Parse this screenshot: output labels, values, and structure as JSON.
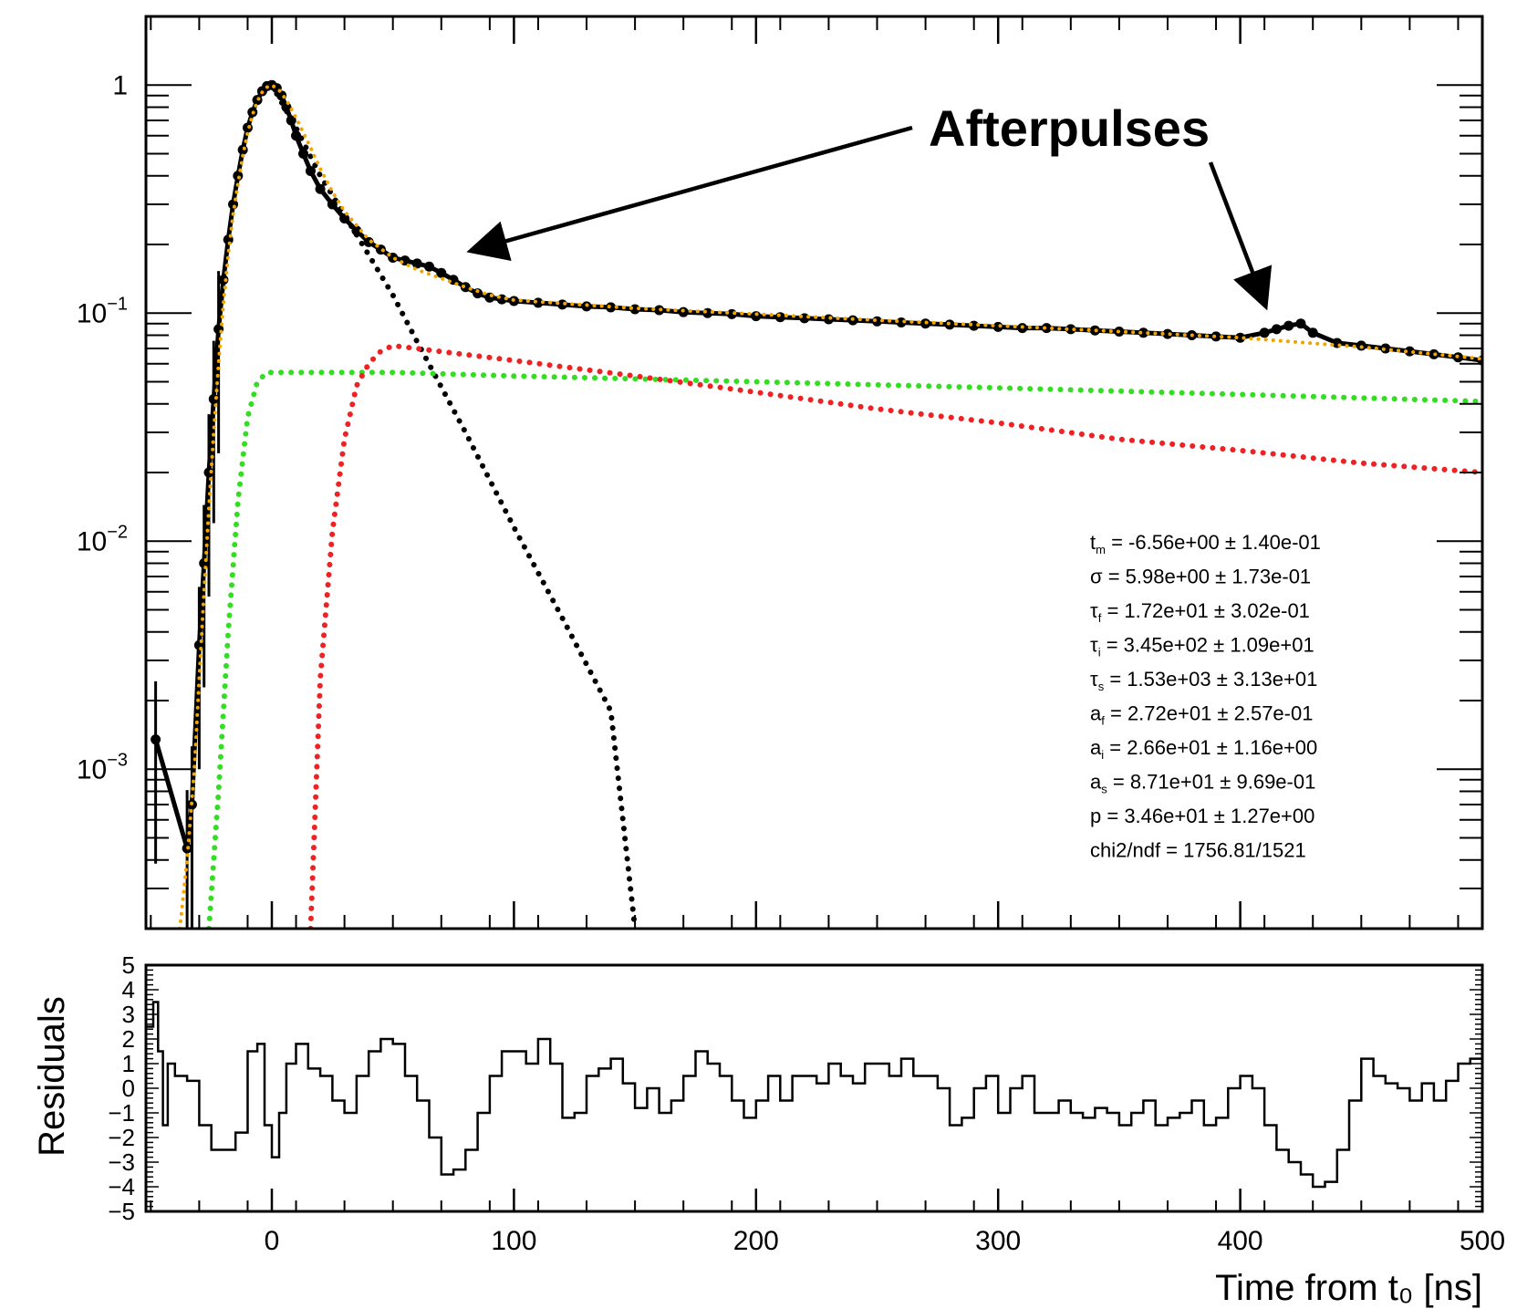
{
  "chart_data": [
    {
      "type": "scatter",
      "xlabel": "",
      "ylabel": "",
      "xlim": [
        -52,
        500
      ],
      "ylim": [
        0.0002,
        2
      ],
      "yscale": "log",
      "y_tick_labels": [
        {
          "value": 1,
          "base": "1",
          "exp": ""
        },
        {
          "value": 0.1,
          "base": "10",
          "exp": "−1"
        },
        {
          "value": 0.01,
          "base": "10",
          "exp": "−2"
        },
        {
          "value": 0.001,
          "base": "10",
          "exp": "−3"
        }
      ],
      "annotation": {
        "text": "Afterpulses",
        "targets": [
          [
            80,
            0.17
          ],
          [
            410,
            0.085
          ]
        ]
      },
      "fit_parameters": [
        {
          "sym": "t",
          "sub": "m",
          "text": " = -6.56e+00 ± 1.40e-01"
        },
        {
          "sym": "σ",
          "sub": "",
          "text": " = 5.98e+00 ± 1.73e-01"
        },
        {
          "sym": "τ",
          "sub": "f",
          "text": " = 1.72e+01 ± 3.02e-01"
        },
        {
          "sym": "τ",
          "sub": "i",
          "text": " = 3.45e+02 ± 1.09e+01"
        },
        {
          "sym": "τ",
          "sub": "s",
          "text": " = 1.53e+03 ± 3.13e+01"
        },
        {
          "sym": "a",
          "sub": "f",
          "text": " = 2.72e+01 ± 2.57e-01"
        },
        {
          "sym": "a",
          "sub": "i",
          "text": " = 2.66e+01 ± 1.16e+00"
        },
        {
          "sym": "a",
          "sub": "s",
          "text": " = 8.71e+01 ± 9.69e-01"
        },
        {
          "sym": "p",
          "sub": "",
          "text": " = 3.46e+01 ± 1.27e+00"
        },
        {
          "sym": "chi2/ndf",
          "sub": "",
          "text": " = 1756.81/1521"
        }
      ],
      "series": [
        {
          "role": "data",
          "color": "#000000",
          "x": [
            -48,
            -35,
            -33,
            -30,
            -28,
            -26,
            -24,
            -22,
            -20,
            -18,
            -16,
            -14,
            -12,
            -10,
            -8,
            -6,
            -4,
            -2,
            0,
            2,
            4,
            6,
            8,
            10,
            13,
            16,
            20,
            25,
            30,
            35,
            40,
            45,
            50,
            55,
            60,
            65,
            70,
            75,
            80,
            85,
            90,
            95,
            100,
            110,
            120,
            130,
            140,
            150,
            160,
            170,
            180,
            190,
            200,
            210,
            220,
            230,
            240,
            250,
            260,
            270,
            280,
            290,
            300,
            310,
            320,
            330,
            340,
            350,
            360,
            370,
            380,
            390,
            400,
            410,
            415,
            420,
            425,
            430,
            440,
            450,
            460,
            470,
            480,
            490,
            500
          ],
          "y": [
            0.00135,
            0.00045,
            0.0007,
            0.0035,
            0.008,
            0.02,
            0.042,
            0.085,
            0.14,
            0.21,
            0.3,
            0.4,
            0.52,
            0.65,
            0.76,
            0.86,
            0.94,
            0.99,
            1.0,
            0.97,
            0.9,
            0.8,
            0.7,
            0.6,
            0.5,
            0.42,
            0.35,
            0.3,
            0.26,
            0.23,
            0.205,
            0.19,
            0.175,
            0.17,
            0.165,
            0.16,
            0.15,
            0.14,
            0.13,
            0.122,
            0.117,
            0.115,
            0.113,
            0.111,
            0.109,
            0.107,
            0.106,
            0.104,
            0.103,
            0.101,
            0.1,
            0.099,
            0.097,
            0.096,
            0.095,
            0.094,
            0.093,
            0.092,
            0.091,
            0.09,
            0.089,
            0.088,
            0.087,
            0.086,
            0.086,
            0.085,
            0.084,
            0.083,
            0.082,
            0.081,
            0.08,
            0.079,
            0.078,
            0.082,
            0.085,
            0.088,
            0.09,
            0.082,
            0.074,
            0.072,
            0.07,
            0.068,
            0.066,
            0.064,
            0.062
          ]
        },
        {
          "role": "fit-total",
          "color": "#f0a500",
          "x": [
            -38,
            -35,
            -32,
            -30,
            -28,
            -26,
            -24,
            -22,
            -20,
            -18,
            -16,
            -14,
            -12,
            -10,
            -8,
            -6,
            -4,
            -2,
            0,
            3,
            6,
            10,
            15,
            20,
            25,
            30,
            40,
            50,
            60,
            70,
            80,
            90,
            100,
            150,
            200,
            250,
            300,
            350,
            400,
            450,
            500
          ],
          "y": [
            0.0002,
            0.0004,
            0.001,
            0.0025,
            0.006,
            0.014,
            0.03,
            0.06,
            0.11,
            0.18,
            0.27,
            0.37,
            0.49,
            0.62,
            0.74,
            0.85,
            0.93,
            0.98,
            1.0,
            0.95,
            0.86,
            0.72,
            0.56,
            0.43,
            0.34,
            0.28,
            0.21,
            0.175,
            0.155,
            0.142,
            0.13,
            0.12,
            0.114,
            0.105,
            0.099,
            0.093,
            0.088,
            0.083,
            0.078,
            0.071,
            0.063
          ]
        },
        {
          "role": "fast-component",
          "color": "#000000",
          "x": [
            0,
            10,
            20,
            30,
            40,
            50,
            60,
            80,
            100,
            120,
            140,
            150
          ],
          "y": [
            1.0,
            0.65,
            0.4,
            0.27,
            0.18,
            0.12,
            0.075,
            0.03,
            0.0115,
            0.0046,
            0.0018,
            0.0002
          ]
        },
        {
          "role": "slow-component",
          "color": "#33dd22",
          "x": [
            -26,
            -22,
            -18,
            -14,
            -10,
            -6,
            -2,
            0,
            50,
            100,
            200,
            300,
            400,
            500
          ],
          "y": [
            0.0002,
            0.0008,
            0.004,
            0.015,
            0.035,
            0.05,
            0.055,
            0.055,
            0.055,
            0.053,
            0.05,
            0.047,
            0.044,
            0.041
          ]
        },
        {
          "role": "intermediate-component",
          "color": "#ee2222",
          "x": [
            16,
            20,
            25,
            30,
            35,
            40,
            45,
            50,
            100,
            150,
            200,
            250,
            300,
            350,
            400,
            450,
            500
          ],
          "y": [
            0.0002,
            0.0025,
            0.011,
            0.028,
            0.048,
            0.06,
            0.068,
            0.072,
            0.062,
            0.053,
            0.045,
            0.038,
            0.033,
            0.028,
            0.025,
            0.022,
            0.02
          ]
        }
      ]
    },
    {
      "type": "line",
      "xlabel": "Time from t₀ [ns]",
      "ylabel": "Residuals",
      "xlim": [
        -52,
        500
      ],
      "ylim": [
        -5,
        5
      ],
      "x_ticks": [
        0,
        100,
        200,
        300,
        400,
        500
      ],
      "y_ticks": [
        -5,
        -4,
        -3,
        -2,
        -1,
        0,
        1,
        2,
        3,
        4,
        5
      ],
      "x_tick_labels": [
        "0",
        "100",
        "200",
        "300",
        "400",
        "500"
      ],
      "y_tick_labels": [
        "−5",
        "−4",
        "−3",
        "−2",
        "−1",
        "0",
        "1",
        "2",
        "3",
        "4",
        "5"
      ],
      "series": [
        {
          "role": "residuals",
          "color": "#000000",
          "x": [
            -52,
            -49,
            -47,
            -45,
            -43,
            -40,
            -35,
            -30,
            -25,
            -20,
            -15,
            -10,
            -6,
            -3,
            0,
            3,
            6,
            10,
            15,
            20,
            25,
            30,
            35,
            40,
            45,
            50,
            55,
            60,
            65,
            70,
            75,
            80,
            85,
            90,
            95,
            100,
            105,
            110,
            115,
            120,
            125,
            130,
            135,
            140,
            145,
            150,
            155,
            160,
            165,
            170,
            175,
            180,
            185,
            190,
            195,
            200,
            205,
            210,
            215,
            220,
            225,
            230,
            235,
            240,
            245,
            250,
            255,
            260,
            265,
            270,
            275,
            280,
            285,
            290,
            295,
            300,
            305,
            310,
            315,
            320,
            325,
            330,
            335,
            340,
            345,
            350,
            355,
            360,
            365,
            370,
            375,
            380,
            385,
            390,
            395,
            400,
            405,
            410,
            415,
            420,
            425,
            430,
            435,
            440,
            445,
            450,
            455,
            460,
            465,
            470,
            475,
            480,
            485,
            490,
            495,
            500
          ],
          "y": [
            2.5,
            3.5,
            1.5,
            -1.5,
            1,
            0.5,
            0.3,
            -1.5,
            -2.5,
            -2.5,
            -1.8,
            1.5,
            1.8,
            -1.5,
            -2.8,
            -1,
            1,
            1.8,
            0.8,
            0.5,
            -0.5,
            -1,
            0.5,
            1.5,
            2,
            1.8,
            0.5,
            -0.5,
            -2,
            -3.5,
            -3.3,
            -2.5,
            -1,
            0.5,
            1.5,
            1.5,
            1,
            2,
            1,
            -1.2,
            -1,
            0.5,
            0.8,
            1.2,
            0.2,
            -0.8,
            0,
            -1,
            -0.5,
            0.5,
            1.5,
            1,
            0.5,
            -0.5,
            -1.2,
            -0.5,
            0.5,
            -0.5,
            0.5,
            0.5,
            0.2,
            1,
            0.5,
            0.2,
            1,
            1,
            0.5,
            1.2,
            0.5,
            0.5,
            0,
            -1.5,
            -1.2,
            0,
            0.5,
            -1,
            0,
            0.5,
            -1,
            -1,
            -0.5,
            -1,
            -1.2,
            -0.8,
            -1,
            -1.5,
            -1,
            -0.5,
            -1.5,
            -1.2,
            -1,
            -0.5,
            -1.5,
            -1.2,
            0,
            0.5,
            0,
            -1.5,
            -2.5,
            -3,
            -3.5,
            -4,
            -3.8,
            -2.5,
            -0.5,
            1.2,
            0.5,
            0.2,
            0,
            -0.5,
            0.2,
            -0.5,
            0.3,
            1,
            1.2,
            1.2
          ]
        }
      ]
    }
  ]
}
